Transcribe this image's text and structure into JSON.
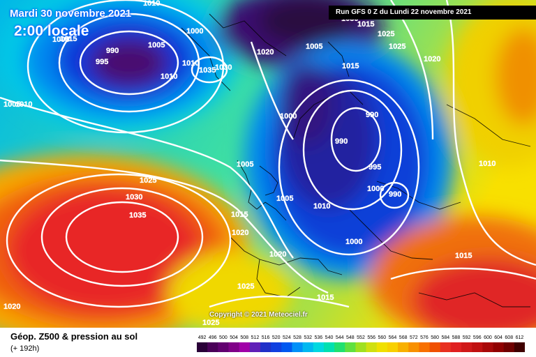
{
  "header": {
    "date": "Mardi 30 novembre 2021",
    "local_time": "2:00 locale",
    "run": "Run GFS 0 Z du Lundi 22 novembre 2021"
  },
  "footer": {
    "product": "Géop. Z500 & pression au sol",
    "lead": "(+ 192h)"
  },
  "copyright": "Copyright © 2021 Meteociel.fr",
  "colors": {
    "lowest": "#3a0a4a",
    "low": "#1a2ad0",
    "mid_low": "#00a8e8",
    "mid": "#2ce0a0",
    "mid_high": "#f0e000",
    "high": "#f08000",
    "highest": "#ee2020",
    "isobar": "#ffffff",
    "coast": "#000000"
  },
  "legend": {
    "values": [
      "492",
      "496",
      "500",
      "504",
      "508",
      "512",
      "516",
      "520",
      "524",
      "528",
      "532",
      "536",
      "540",
      "544",
      "548",
      "552",
      "556",
      "560",
      "564",
      "568",
      "572",
      "576",
      "580",
      "584",
      "588",
      "592",
      "596",
      "600",
      "604",
      "608",
      "612"
    ],
    "colors": [
      "#2a0038",
      "#4a0058",
      "#620070",
      "#800088",
      "#a000a8",
      "#6020b8",
      "#2030c8",
      "#1040e0",
      "#0058f0",
      "#0090f8",
      "#00b8f0",
      "#00d8e0",
      "#00e0b0",
      "#20e070",
      "#60e040",
      "#a0e020",
      "#d0e010",
      "#f0e000",
      "#f8d000",
      "#f8b000",
      "#f89000",
      "#f87000",
      "#f05000",
      "#e83020",
      "#e02020",
      "#d01818",
      "#c01010",
      "#a80808",
      "#900000",
      "#700000",
      "#400000"
    ]
  },
  "pressure_labels": [
    {
      "text": "1010"
    },
    {
      "text": "1000"
    },
    {
      "text": "1005"
    },
    {
      "text": "990"
    },
    {
      "text": "995"
    },
    {
      "text": "1015"
    },
    {
      "text": "1010"
    },
    {
      "text": "1030"
    },
    {
      "text": "1035"
    },
    {
      "text": "1020"
    },
    {
      "text": "1010"
    },
    {
      "text": "1005"
    },
    {
      "text": "1005"
    },
    {
      "text": "1015"
    },
    {
      "text": "1025"
    },
    {
      "text": "1025"
    },
    {
      "text": "1030"
    },
    {
      "text": "1020"
    },
    {
      "text": "1015"
    },
    {
      "text": "1000"
    },
    {
      "text": "990"
    },
    {
      "text": "990"
    },
    {
      "text": "995"
    },
    {
      "text": "1000"
    },
    {
      "text": "990"
    },
    {
      "text": "1005"
    },
    {
      "text": "1005"
    },
    {
      "text": "1010"
    },
    {
      "text": "1005"
    },
    {
      "text": "1010"
    },
    {
      "text": "1000"
    },
    {
      "text": "1020"
    },
    {
      "text": "1025"
    },
    {
      "text": "1030"
    },
    {
      "text": "1035"
    },
    {
      "text": "1015"
    },
    {
      "text": "1020"
    },
    {
      "text": "1025"
    },
    {
      "text": "1015"
    },
    {
      "text": "1015"
    },
    {
      "text": "1020"
    },
    {
      "text": "1025"
    },
    {
      "text": "1010"
    },
    {
      "text": "1015"
    }
  ]
}
